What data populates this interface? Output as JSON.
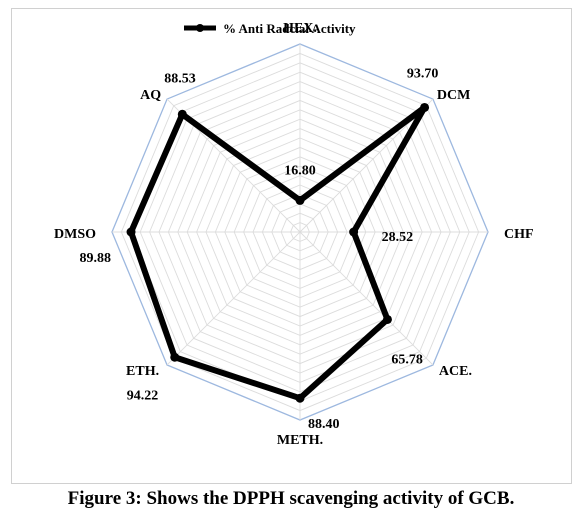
{
  "caption": "Figure 3: Shows the DPPH scavenging activity of GCB.",
  "chart_data": {
    "type": "radar",
    "categories": [
      "HEX.",
      "DCM",
      "CHF",
      "ACE.",
      "METH.",
      "ETH.",
      "DMSO",
      "AQ"
    ],
    "series": [
      {
        "name": "% Anti Radcial Activity",
        "values": [
          16.8,
          93.7,
          28.52,
          65.78,
          88.4,
          94.22,
          89.88,
          88.53
        ],
        "value_labels": [
          "16.80",
          "93.70",
          "28.52",
          "65.78",
          "88.40",
          "94.22",
          "89.88",
          "88.53"
        ],
        "color": "#000000"
      }
    ],
    "rlim": [
      0,
      100
    ],
    "grid": true,
    "legend_position": "top",
    "grid_color": "#9db8df"
  }
}
